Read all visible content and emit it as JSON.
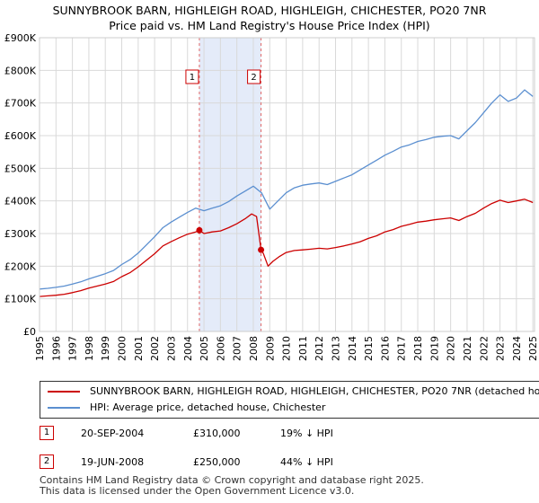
{
  "chart_data": {
    "type": "line",
    "title": "SUNNYBROOK BARN, HIGHLEIGH ROAD, HIGHLEIGH, CHICHESTER, PO20 7NR",
    "subtitle": "Price paid vs. HM Land Registry's House Price Index (HPI)",
    "xlim": [
      1995,
      2025.1
    ],
    "ylim": [
      0,
      900000
    ],
    "ytick_values": [
      0,
      100000,
      200000,
      300000,
      400000,
      500000,
      600000,
      700000,
      800000,
      900000
    ],
    "ytick_labels": [
      "£0",
      "£100K",
      "£200K",
      "£300K",
      "£400K",
      "£500K",
      "£600K",
      "£700K",
      "£800K",
      "£900K"
    ],
    "xtick_labels": [
      "1995",
      "1996",
      "1997",
      "1998",
      "1999",
      "2000",
      "2001",
      "2002",
      "2003",
      "2004",
      "2005",
      "2006",
      "2007",
      "2008",
      "2009",
      "2010",
      "2011",
      "2012",
      "2013",
      "2014",
      "2015",
      "2016",
      "2017",
      "2018",
      "2019",
      "2020",
      "2021",
      "2022",
      "2023",
      "2024",
      "2025"
    ],
    "series": [
      {
        "name": "SUNNYBROOK BARN, HIGHLEIGH ROAD, HIGHLEIGH, CHICHESTER, PO20 7NR (detached house)",
        "color": "#cc0000",
        "x": [
          1995.0,
          1995.5,
          1996.0,
          1996.5,
          1997.0,
          1997.5,
          1998.0,
          1998.5,
          1999.0,
          1999.5,
          2000.0,
          2000.5,
          2001.0,
          2001.5,
          2002.0,
          2002.5,
          2003.0,
          2003.5,
          2004.0,
          2004.5,
          2004.72,
          2005.0,
          2005.5,
          2006.0,
          2006.5,
          2007.0,
          2007.5,
          2007.9,
          2008.2,
          2008.47,
          2008.6,
          2008.9,
          2009.2,
          2009.6,
          2010.0,
          2010.5,
          2011.0,
          2011.5,
          2012.0,
          2012.5,
          2013.0,
          2013.5,
          2014.0,
          2014.5,
          2015.0,
          2015.5,
          2016.0,
          2016.5,
          2017.0,
          2017.5,
          2018.0,
          2018.5,
          2019.0,
          2019.5,
          2020.0,
          2020.5,
          2021.0,
          2021.5,
          2022.0,
          2022.5,
          2023.0,
          2023.5,
          2024.0,
          2024.5,
          2025.0
        ],
        "y": [
          107000,
          109000,
          111000,
          114000,
          119000,
          125000,
          133000,
          139000,
          145000,
          153000,
          168000,
          180000,
          198000,
          218000,
          238000,
          262000,
          275000,
          287000,
          298000,
          305000,
          310000,
          300000,
          305000,
          308000,
          318000,
          330000,
          345000,
          360000,
          352000,
          250000,
          240000,
          200000,
          215000,
          230000,
          242000,
          248000,
          250000,
          252000,
          255000,
          253000,
          257000,
          262000,
          268000,
          275000,
          285000,
          293000,
          305000,
          312000,
          322000,
          328000,
          335000,
          338000,
          342000,
          345000,
          348000,
          340000,
          352000,
          362000,
          378000,
          392000,
          402000,
          395000,
          400000,
          405000,
          395000
        ]
      },
      {
        "name": "HPI: Average price, detached house, Chichester",
        "color": "#5b8fd0",
        "x": [
          1995.0,
          1995.5,
          1996.0,
          1996.5,
          1997.0,
          1997.5,
          1998.0,
          1998.5,
          1999.0,
          1999.5,
          2000.0,
          2000.5,
          2001.0,
          2001.5,
          2002.0,
          2002.5,
          2003.0,
          2003.5,
          2004.0,
          2004.5,
          2005.0,
          2005.5,
          2006.0,
          2006.5,
          2007.0,
          2007.5,
          2008.0,
          2008.5,
          2009.0,
          2009.5,
          2010.0,
          2010.5,
          2011.0,
          2011.5,
          2012.0,
          2012.5,
          2013.0,
          2013.5,
          2014.0,
          2014.5,
          2015.0,
          2015.5,
          2016.0,
          2016.5,
          2017.0,
          2017.5,
          2018.0,
          2018.5,
          2019.0,
          2019.5,
          2020.0,
          2020.5,
          2021.0,
          2021.5,
          2022.0,
          2022.5,
          2023.0,
          2023.5,
          2024.0,
          2024.5,
          2025.0
        ],
        "y": [
          130000,
          132000,
          135000,
          139000,
          145000,
          152000,
          161000,
          169000,
          177000,
          187000,
          205000,
          220000,
          240000,
          265000,
          290000,
          318000,
          335000,
          350000,
          365000,
          378000,
          370000,
          378000,
          385000,
          398000,
          415000,
          430000,
          445000,
          425000,
          375000,
          400000,
          425000,
          440000,
          448000,
          452000,
          455000,
          450000,
          460000,
          470000,
          480000,
          495000,
          510000,
          525000,
          540000,
          552000,
          565000,
          572000,
          582000,
          588000,
          595000,
          598000,
          600000,
          590000,
          615000,
          640000,
          670000,
          700000,
          725000,
          705000,
          715000,
          740000,
          720000
        ]
      }
    ],
    "markers": [
      {
        "label": "1",
        "x": 2004.72,
        "y": 310000,
        "band_start": 2004.72,
        "band_end": 2008.47
      },
      {
        "label": "2",
        "x": 2008.47,
        "y": 250000
      }
    ]
  },
  "transactions": [
    {
      "num": "1",
      "date": "20-SEP-2004",
      "price": "£310,000",
      "hpi": "19% ↓ HPI"
    },
    {
      "num": "2",
      "date": "19-JUN-2008",
      "price": "£250,000",
      "hpi": "44% ↓ HPI"
    }
  ],
  "footer": {
    "line1": "Contains HM Land Registry data © Crown copyright and database right 2025.",
    "line2": "This data is licensed under the Open Government Licence v3.0."
  }
}
